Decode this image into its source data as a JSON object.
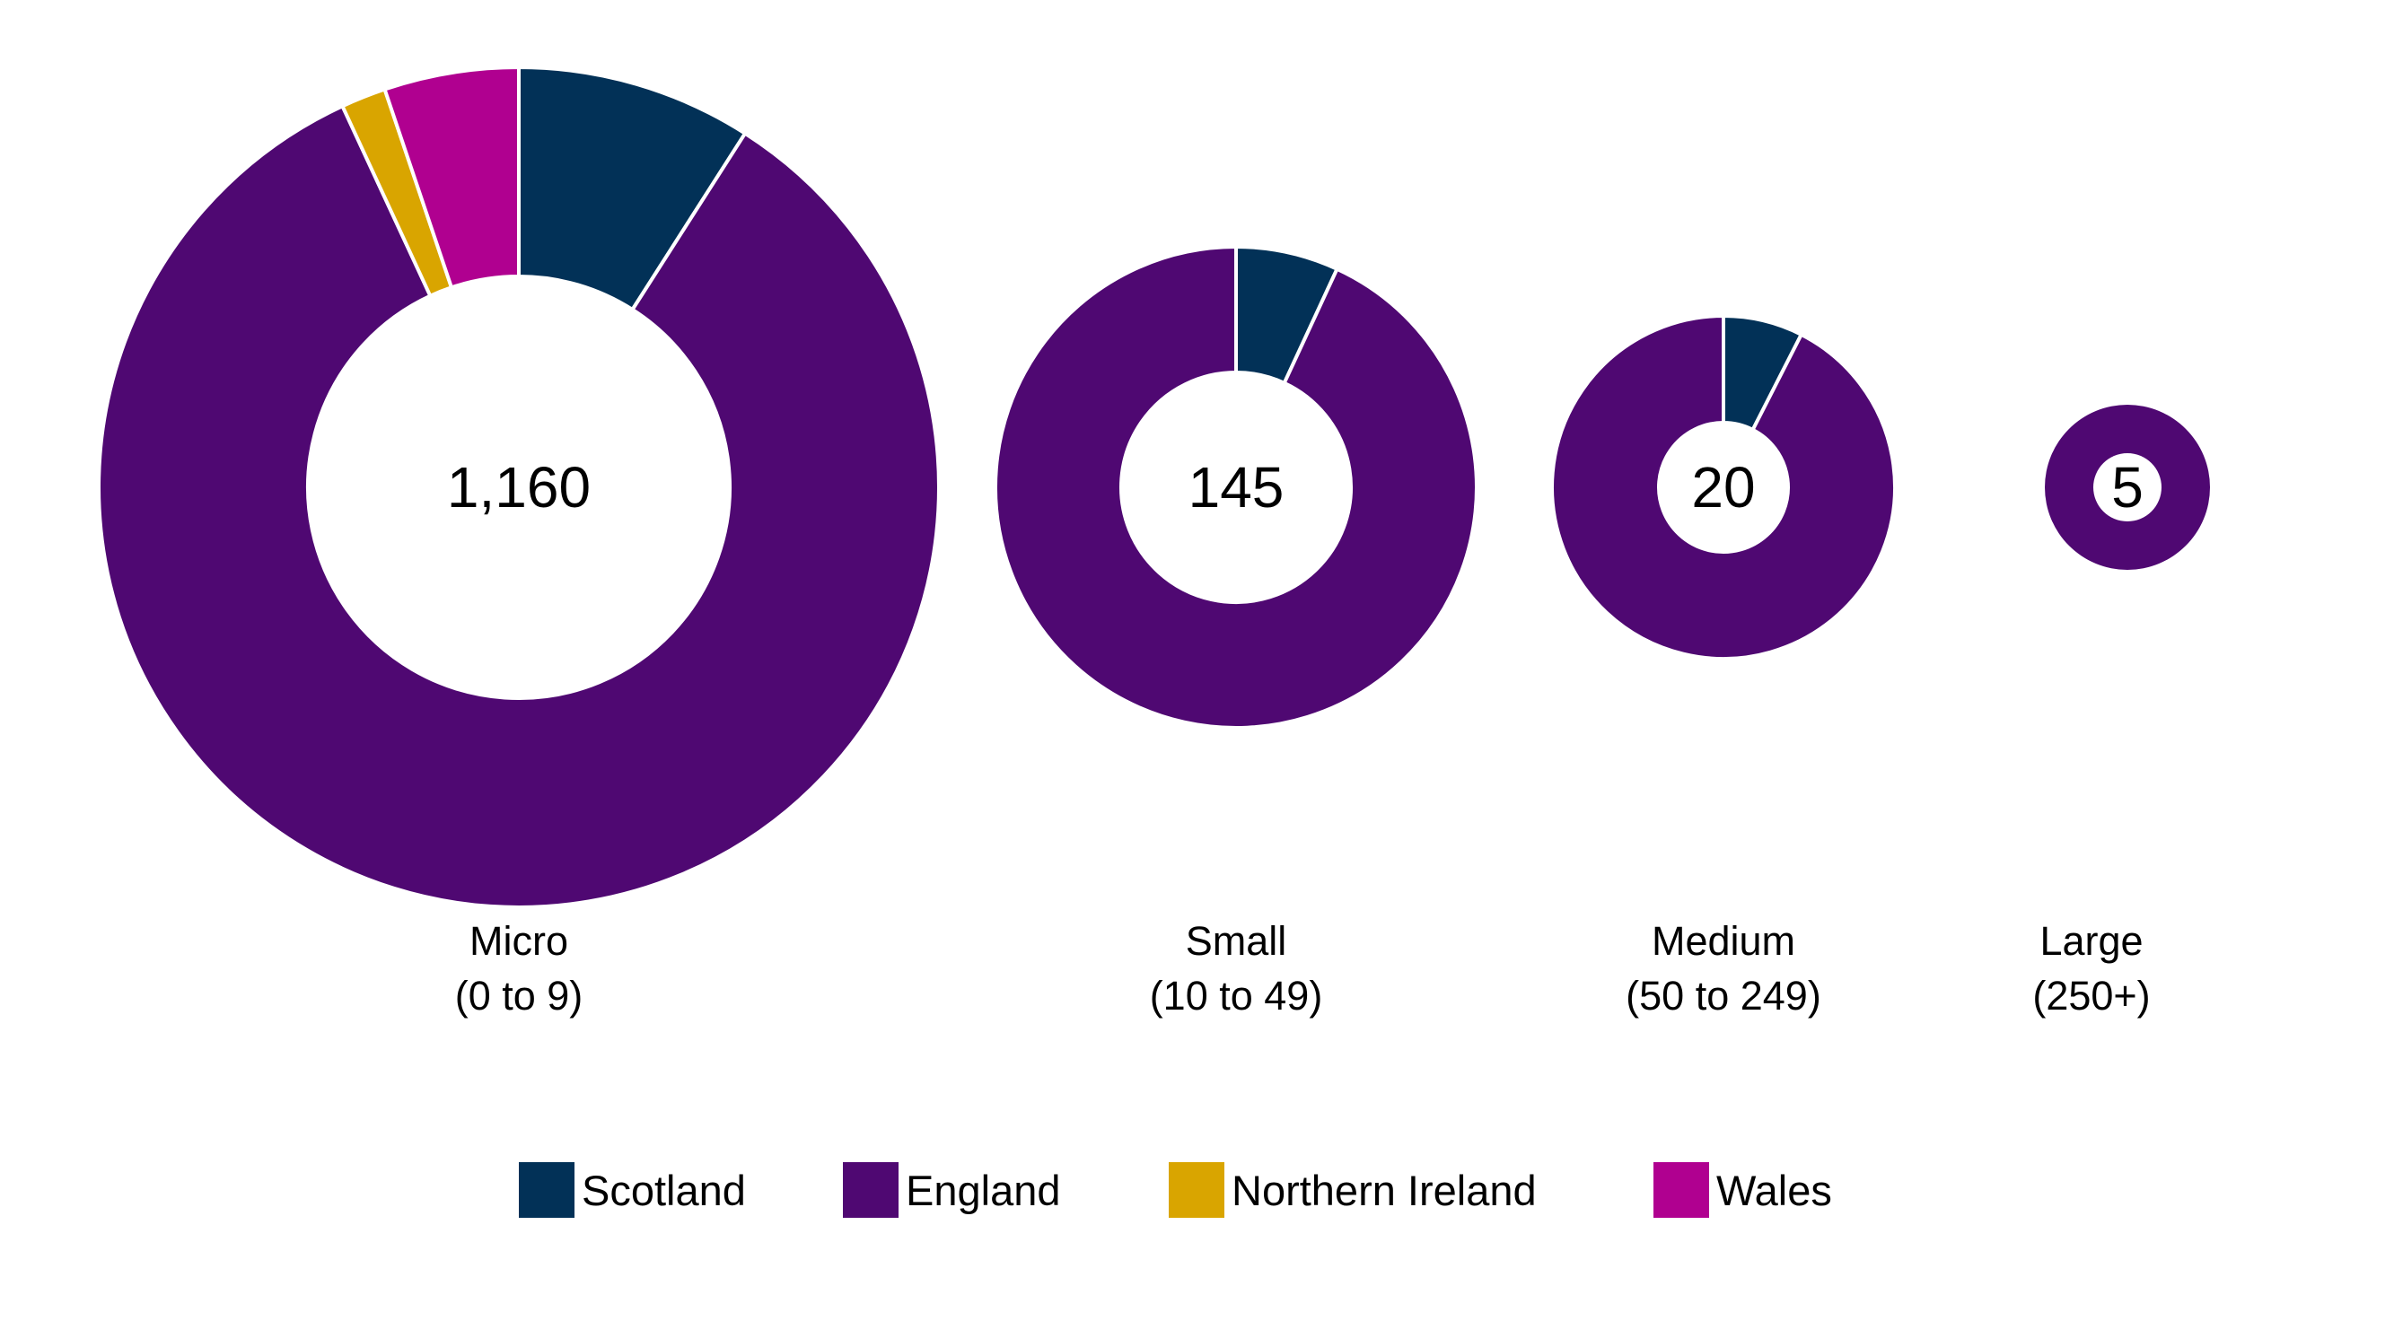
{
  "chart_data": {
    "type": "pie",
    "variant": "donut",
    "legend_placement": "bottom",
    "series": [
      {
        "name": "Scotland",
        "color": "#023157"
      },
      {
        "name": "England",
        "color": "#4F0872"
      },
      {
        "name": "Northern Ireland",
        "color": "#D9A500"
      },
      {
        "name": "Wales",
        "color": "#B00090"
      }
    ],
    "categories": [
      {
        "total": "1,160",
        "label_line1": "Micro",
        "label_line2": "(0 to 9)",
        "values": [
          105,
          975,
          20,
          60
        ]
      },
      {
        "total": "145",
        "label_line1": "Small",
        "label_line2": "(10 to 49)",
        "values": [
          10,
          135,
          0,
          0
        ]
      },
      {
        "total": "20",
        "label_line1": "Medium",
        "label_line2": "(50 to 249)",
        "values": [
          1.5,
          18.5,
          0,
          0
        ]
      },
      {
        "total": "5",
        "label_line1": "Large",
        "label_line2": "(250+)",
        "values": [
          0,
          5,
          0,
          0
        ]
      }
    ]
  }
}
